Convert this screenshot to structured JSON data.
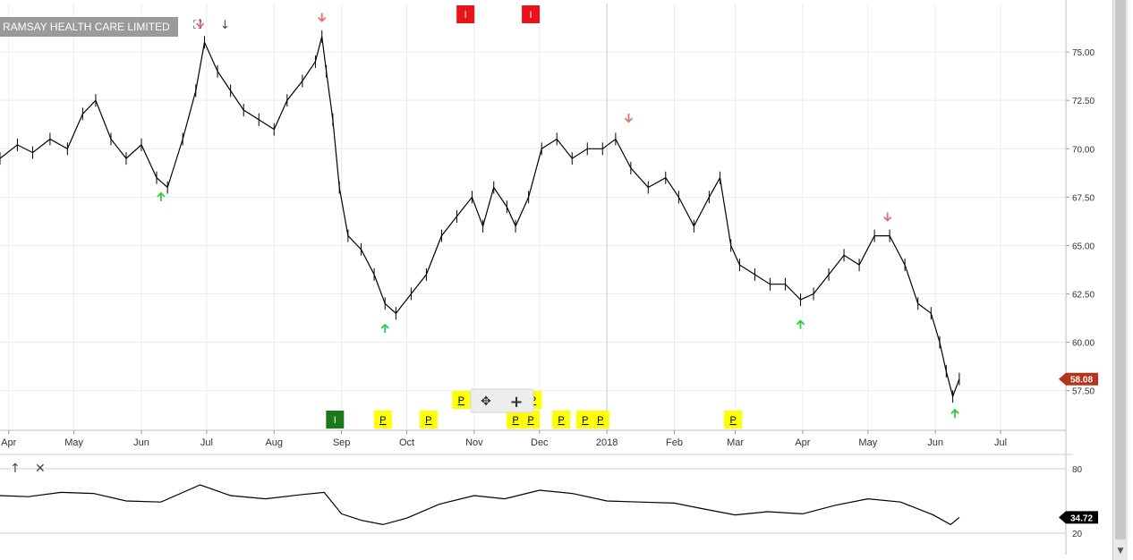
{
  "header": {
    "title": "RAMSAY HEALTH CARE LIMITED",
    "expand_glyph": "⛶",
    "down_glyph": "↓"
  },
  "indicator_controls": {
    "up_glyph": "↑",
    "close_glyph": "✕"
  },
  "colors": {
    "price_line": "#000000",
    "grid": "#ececec",
    "up_arrow": "#2ecc40",
    "down_arrow": "#e07070",
    "event_red": "#e8141a",
    "event_green": "#1a7a1a",
    "event_yellow": "#ffff00",
    "last_price_badge": "#b5341c",
    "indicator_badge": "#000000"
  },
  "chart_data": [
    {
      "type": "line",
      "title": "RAMSAY HEALTH CARE LIMITED",
      "xlabel": "",
      "ylabel": "",
      "ylim": [
        55.5,
        77.5
      ],
      "yticks": [
        57.5,
        60.0,
        62.5,
        65.0,
        67.5,
        70.0,
        72.5,
        75.0
      ],
      "ytick_labels": [
        "57.50",
        "60.00",
        "62.50",
        "65.00",
        "67.50",
        "70.00",
        "72.50",
        "75.00"
      ],
      "x_range": [
        "2017-03-28",
        "2018-07-31"
      ],
      "xticks": [
        {
          "date": "2017-04-01",
          "label": "Apr"
        },
        {
          "date": "2017-05-01",
          "label": "May"
        },
        {
          "date": "2017-06-01",
          "label": "Jun"
        },
        {
          "date": "2017-07-01",
          "label": "Jul"
        },
        {
          "date": "2017-08-01",
          "label": "Aug"
        },
        {
          "date": "2017-09-01",
          "label": "Sep"
        },
        {
          "date": "2017-10-01",
          "label": "Oct"
        },
        {
          "date": "2017-11-01",
          "label": "Nov"
        },
        {
          "date": "2017-12-01",
          "label": "Dec"
        },
        {
          "date": "2018-01-01",
          "label": "2018"
        },
        {
          "date": "2018-02-01",
          "label": "Feb"
        },
        {
          "date": "2018-03-01",
          "label": "Mar"
        },
        {
          "date": "2018-04-01",
          "label": "Apr"
        },
        {
          "date": "2018-05-01",
          "label": "May"
        },
        {
          "date": "2018-06-01",
          "label": "Jun"
        },
        {
          "date": "2018-07-01",
          "label": "Jul"
        }
      ],
      "grid": true,
      "x": [
        "2017-03-28",
        "2017-04-05",
        "2017-04-12",
        "2017-04-20",
        "2017-04-28",
        "2017-05-05",
        "2017-05-11",
        "2017-05-18",
        "2017-05-25",
        "2017-06-01",
        "2017-06-08",
        "2017-06-13",
        "2017-06-20",
        "2017-06-26",
        "2017-06-30",
        "2017-07-06",
        "2017-07-12",
        "2017-07-18",
        "2017-07-25",
        "2017-08-01",
        "2017-08-07",
        "2017-08-14",
        "2017-08-20",
        "2017-08-23",
        "2017-08-25",
        "2017-08-28",
        "2017-08-31",
        "2017-09-04",
        "2017-09-10",
        "2017-09-16",
        "2017-09-21",
        "2017-09-26",
        "2017-10-03",
        "2017-10-10",
        "2017-10-17",
        "2017-10-24",
        "2017-10-31",
        "2017-11-05",
        "2017-11-10",
        "2017-11-16",
        "2017-11-20",
        "2017-11-26",
        "2017-12-02",
        "2017-12-09",
        "2017-12-16",
        "2017-12-23",
        "2017-12-30",
        "2018-01-05",
        "2018-01-12",
        "2018-01-20",
        "2018-01-28",
        "2018-02-03",
        "2018-02-10",
        "2018-02-17",
        "2018-02-22",
        "2018-02-27",
        "2018-03-03",
        "2018-03-10",
        "2018-03-17",
        "2018-03-24",
        "2018-03-31",
        "2018-04-06",
        "2018-04-13",
        "2018-04-20",
        "2018-04-27",
        "2018-05-04",
        "2018-05-11",
        "2018-05-18",
        "2018-05-24",
        "2018-05-30",
        "2018-06-03",
        "2018-06-06",
        "2018-06-09",
        "2018-06-12"
      ],
      "series": [
        {
          "values": [
            69.5,
            70.2,
            69.8,
            70.5,
            70.0,
            71.8,
            72.5,
            70.5,
            69.5,
            70.2,
            68.5,
            68.0,
            70.5,
            73.0,
            75.5,
            74.0,
            73.0,
            72.0,
            71.5,
            71.0,
            72.5,
            73.5,
            74.5,
            75.8,
            74.0,
            71.5,
            68.0,
            65.5,
            64.8,
            63.5,
            62.0,
            61.5,
            62.5,
            63.5,
            65.5,
            66.5,
            67.5,
            66.0,
            68.0,
            67.0,
            66.0,
            67.5,
            70.0,
            70.5,
            69.5,
            70.0,
            70.0,
            70.5,
            69.0,
            68.0,
            68.5,
            67.5,
            66.0,
            67.5,
            68.5,
            65.0,
            64.0,
            63.5,
            63.0,
            63.0,
            62.2,
            62.5,
            63.5,
            64.5,
            64.0,
            65.5,
            65.5,
            64.0,
            62.0,
            61.5,
            60.0,
            58.5,
            57.2,
            58.1
          ]
        }
      ],
      "last_value": "58.08",
      "signal_arrows": [
        {
          "date": "2017-06-10",
          "dir": "up",
          "price": 67.8
        },
        {
          "date": "2017-06-28",
          "dir": "down",
          "price": 76.2
        },
        {
          "date": "2017-08-23",
          "dir": "down",
          "price": 76.5
        },
        {
          "date": "2017-09-21",
          "dir": "up",
          "price": 61.0
        },
        {
          "date": "2018-01-11",
          "dir": "down",
          "price": 71.3
        },
        {
          "date": "2018-03-31",
          "dir": "up",
          "price": 61.2
        },
        {
          "date": "2018-05-10",
          "dir": "down",
          "price": 66.2
        },
        {
          "date": "2018-06-10",
          "dir": "up",
          "price": 56.6
        }
      ],
      "event_markers": [
        {
          "date": "2017-10-28",
          "label": "I",
          "color": "red",
          "row": "top"
        },
        {
          "date": "2017-11-27",
          "label": "I",
          "color": "red",
          "row": "top"
        },
        {
          "date": "2017-08-29",
          "label": "I",
          "color": "green",
          "row": "bottom"
        },
        {
          "date": "2017-09-20",
          "label": "P",
          "color": "yellow",
          "row": "bottom"
        },
        {
          "date": "2017-10-11",
          "label": "P",
          "color": "yellow",
          "row": "bottom"
        },
        {
          "date": "2017-10-26",
          "label": "P",
          "color": "yellow",
          "row": "mid"
        },
        {
          "date": "2017-11-20",
          "label": "P",
          "color": "yellow",
          "row": "bottom"
        },
        {
          "date": "2017-11-27",
          "label": "P",
          "color": "yellow",
          "row": "bottom"
        },
        {
          "date": "2017-11-28",
          "label": "P",
          "color": "yellow",
          "row": "mid"
        },
        {
          "date": "2017-12-11",
          "label": "P",
          "color": "yellow",
          "row": "bottom"
        },
        {
          "date": "2017-12-22",
          "label": "P",
          "color": "yellow",
          "row": "bottom"
        },
        {
          "date": "2017-12-29",
          "label": "P",
          "color": "yellow",
          "row": "bottom"
        },
        {
          "date": "2018-02-28",
          "label": "P",
          "color": "yellow",
          "row": "bottom"
        }
      ],
      "chart_tool_glyphs": {
        "pan": "✥",
        "add": "+"
      }
    },
    {
      "type": "line",
      "title": "",
      "ylim": [
        0,
        100
      ],
      "yticks": [
        20,
        80
      ],
      "ytick_labels": [
        "20",
        "80"
      ],
      "x_range": [
        "2017-03-28",
        "2018-07-31"
      ],
      "x": [
        "2017-03-28",
        "2017-04-10",
        "2017-04-25",
        "2017-05-10",
        "2017-05-25",
        "2017-06-10",
        "2017-06-28",
        "2017-07-12",
        "2017-07-28",
        "2017-08-14",
        "2017-08-24",
        "2017-09-01",
        "2017-09-10",
        "2017-09-20",
        "2017-10-01",
        "2017-10-16",
        "2017-11-01",
        "2017-11-15",
        "2017-12-01",
        "2017-12-16",
        "2018-01-01",
        "2018-01-16",
        "2018-02-01",
        "2018-02-16",
        "2018-03-01",
        "2018-03-16",
        "2018-04-01",
        "2018-04-16",
        "2018-05-01",
        "2018-05-16",
        "2018-05-31",
        "2018-06-08",
        "2018-06-12"
      ],
      "series": [
        {
          "values": [
            55,
            54,
            58,
            57,
            50,
            49,
            65,
            55,
            52,
            56,
            58,
            38,
            32,
            28,
            34,
            47,
            55,
            52,
            60,
            57,
            50,
            49,
            48,
            42,
            37,
            40,
            38,
            46,
            52,
            49,
            37,
            28,
            34.72
          ]
        }
      ],
      "last_value": "34.72"
    }
  ]
}
